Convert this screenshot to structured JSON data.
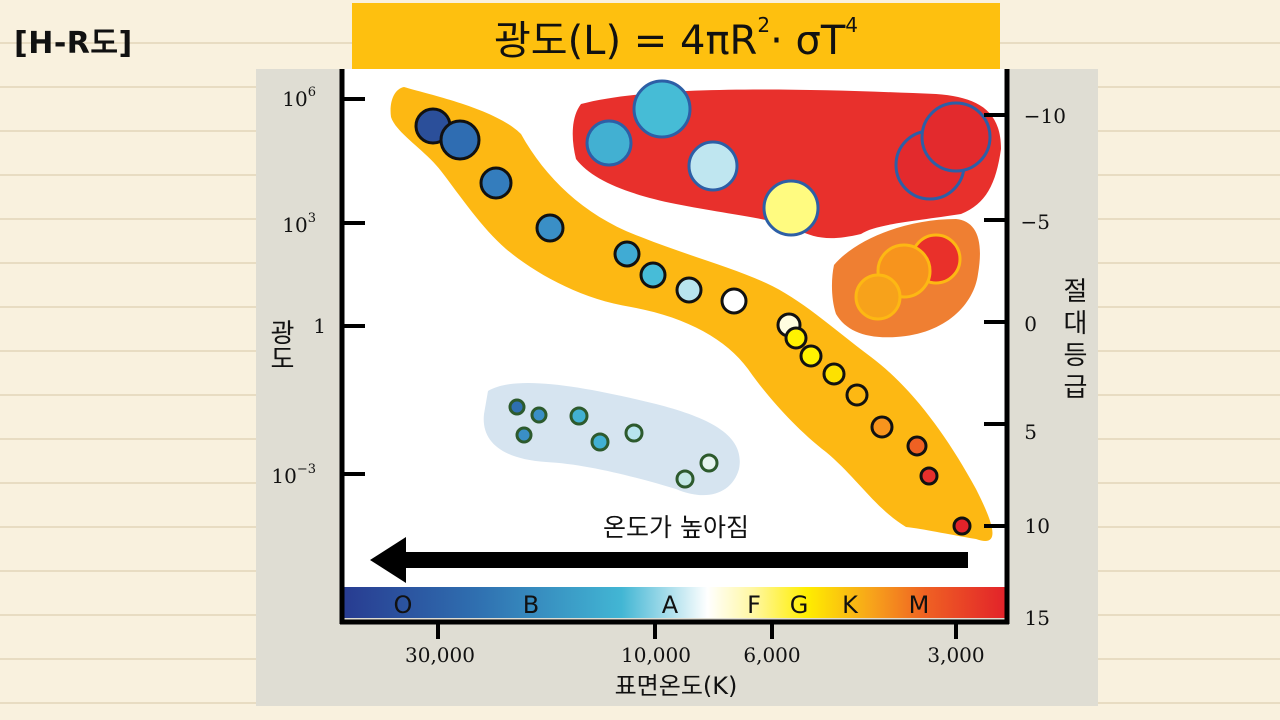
{
  "header": {
    "page_label": "[H-R도]",
    "formula": {
      "prefix": "광도(L) = 4πR",
      "r_exp": "2",
      "middle": "· σT",
      "t_exp": "4"
    }
  },
  "chart_data": {
    "type": "scatter",
    "y_left": {
      "label": "광도",
      "ticks": [
        {
          "base": "10",
          "exp": "6"
        },
        {
          "base": "10",
          "exp": "3"
        },
        {
          "base": "1",
          "exp": ""
        },
        {
          "base": "10",
          "exp": "−3"
        }
      ]
    },
    "y_right": {
      "label": "절대등급",
      "ticks": [
        "−10",
        "−5",
        "0",
        "5",
        "10",
        "15"
      ]
    },
    "x": {
      "label": "표면온도(K)",
      "ticks": [
        "30,000",
        "10,000",
        "6,000",
        "3,000"
      ]
    },
    "spectral_classes": [
      "O",
      "B",
      "A",
      "F",
      "G",
      "K",
      "M"
    ],
    "arrow_label": "온도가 높아짐",
    "colors": {
      "main_sequence": "#fdb813",
      "supergiants": "#e8302c",
      "giants": "#ef7f32",
      "white_dwarfs": "#d6e4f0",
      "axis": "#000000"
    }
  }
}
